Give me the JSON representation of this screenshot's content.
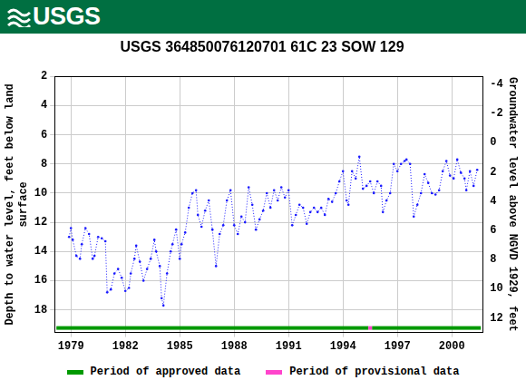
{
  "header": {
    "logo": "USGS"
  },
  "chart_data": {
    "type": "line",
    "title": "USGS 364850076120701 61C 23 SOW 129",
    "y_label": [
      "Depth to water level, feet below land",
      "surface"
    ],
    "y2_label": "Groundwater level above NGVD 1929, feet",
    "x": [
      1978.9,
      1979.0,
      1979.1,
      1979.3,
      1979.5,
      1979.6,
      1979.8,
      1980.0,
      1980.2,
      1980.3,
      1980.5,
      1980.7,
      1980.9,
      1981.0,
      1981.2,
      1981.4,
      1981.6,
      1981.8,
      1982.0,
      1982.2,
      1982.3,
      1982.5,
      1982.6,
      1982.8,
      1983.0,
      1983.2,
      1983.4,
      1983.6,
      1983.7,
      1983.9,
      1984.0,
      1984.1,
      1984.3,
      1984.5,
      1984.6,
      1984.8,
      1985.0,
      1985.1,
      1985.3,
      1985.5,
      1985.7,
      1985.9,
      1986.0,
      1986.2,
      1986.4,
      1986.6,
      1986.8,
      1987.0,
      1987.2,
      1987.4,
      1987.6,
      1987.8,
      1988.0,
      1988.2,
      1988.4,
      1988.6,
      1988.8,
      1989.0,
      1989.2,
      1989.4,
      1989.6,
      1989.8,
      1990.0,
      1990.2,
      1990.4,
      1990.6,
      1990.8,
      1991.0,
      1991.2,
      1991.4,
      1991.6,
      1991.8,
      1992.0,
      1992.2,
      1992.4,
      1992.6,
      1992.8,
      1993.0,
      1993.2,
      1993.4,
      1993.6,
      1993.8,
      1994.0,
      1994.2,
      1994.3,
      1994.5,
      1994.7,
      1994.9,
      1995.1,
      1995.3,
      1995.5,
      1995.7,
      1995.9,
      1996.1,
      1996.2,
      1996.4,
      1996.6,
      1996.8,
      1997.0,
      1997.2,
      1997.4,
      1997.5,
      1997.7,
      1997.9,
      1998.1,
      1998.3,
      1998.5,
      1998.7,
      1998.9,
      1999.1,
      1999.3,
      1999.5,
      1999.7,
      1999.9,
      2000.1,
      2000.3,
      2000.5,
      2000.7,
      2000.8,
      2001.0,
      2001.2,
      2001.4
    ],
    "series": [
      {
        "name": "Depth to water level",
        "color": "#1a1aff",
        "marker": "circle",
        "line_style": "dotted",
        "values": [
          13.0,
          12.4,
          13.2,
          14.3,
          14.5,
          13.5,
          12.4,
          12.8,
          14.5,
          14.3,
          13.0,
          13.1,
          13.3,
          16.8,
          16.6,
          15.5,
          15.2,
          15.8,
          16.7,
          16.5,
          15.5,
          14.5,
          13.6,
          14.7,
          16.0,
          15.2,
          14.5,
          13.2,
          14.0,
          15.0,
          17.2,
          17.7,
          15.5,
          14.0,
          13.5,
          12.5,
          14.5,
          13.5,
          12.7,
          11.0,
          10.0,
          9.8,
          11.5,
          12.3,
          11.2,
          10.5,
          12.5,
          15.0,
          12.8,
          12.2,
          10.5,
          9.8,
          12.2,
          12.8,
          11.6,
          12.0,
          9.6,
          10.8,
          12.5,
          11.8,
          11.2,
          10.0,
          11.0,
          9.8,
          10.5,
          9.6,
          10.3,
          9.8,
          12.2,
          11.5,
          10.8,
          11.0,
          12.1,
          11.3,
          11.0,
          11.3,
          11.0,
          11.5,
          10.4,
          10.6,
          10.0,
          9.2,
          8.5,
          10.5,
          10.8,
          8.5,
          9.0,
          7.5,
          9.7,
          9.5,
          9.2,
          10.0,
          9.2,
          9.5,
          11.3,
          10.5,
          10.0,
          8.0,
          8.5,
          8.0,
          7.8,
          7.7,
          8.0,
          11.6,
          10.8,
          10.0,
          8.7,
          9.3,
          10.0,
          10.1,
          9.8,
          8.5,
          7.8,
          8.8,
          9.0,
          7.7,
          8.6,
          9.0,
          9.8,
          8.5,
          9.5,
          8.4
        ]
      }
    ],
    "xlim": [
      1978.1,
      2001.7
    ],
    "xticks": [
      1979,
      1982,
      1985,
      1988,
      1991,
      1994,
      1997,
      2000
    ],
    "ylim": [
      2,
      19.55
    ],
    "yticks": [
      2,
      4,
      6,
      8,
      10,
      12,
      14,
      16,
      18
    ],
    "y2lim": [
      13,
      -4.55
    ],
    "y2ticks": [
      12,
      10,
      8,
      6,
      4,
      2,
      0,
      -2,
      -4
    ],
    "grid": true,
    "legend": "bottom",
    "periods": [
      {
        "name": "Period of approved data",
        "color": "#009900",
        "ranges": [
          [
            1978.2,
            1995.4
          ],
          [
            1995.6,
            2001.6
          ]
        ]
      },
      {
        "name": "Period of provisional data",
        "color": "#ff44cc",
        "ranges": [
          [
            1995.4,
            1995.6
          ]
        ]
      }
    ]
  }
}
